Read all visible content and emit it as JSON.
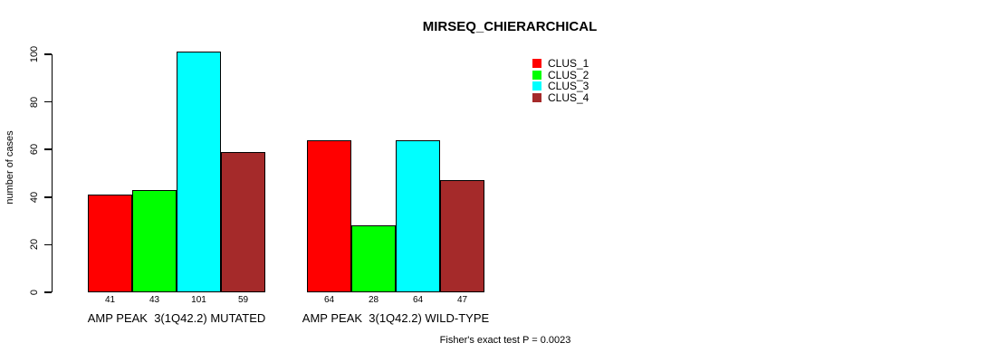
{
  "title": "MIRSEQ_CHIERARCHICAL",
  "ylabel": "number of cases",
  "footer": "Fisher's exact test P = 0.0023",
  "legend": {
    "items": [
      {
        "label": "CLUS_1",
        "color": "#FF0000"
      },
      {
        "label": "CLUS_2",
        "color": "#00FF00"
      },
      {
        "label": "CLUS_3",
        "color": "#00FFFF"
      },
      {
        "label": "CLUS_4",
        "color": "#A52A2A"
      }
    ]
  },
  "colors": {
    "axis": "#000000",
    "background": "#FFFFFF"
  },
  "chart_data": {
    "type": "bar",
    "title": "MIRSEQ_CHIERARCHICAL",
    "xlabel": "",
    "ylabel": "number of cases",
    "ylim": [
      0,
      100
    ],
    "yticks": [
      0,
      20,
      40,
      60,
      80,
      100
    ],
    "grid": false,
    "legend_position": "top-right",
    "series": [
      "CLUS_1",
      "CLUS_2",
      "CLUS_3",
      "CLUS_4"
    ],
    "series_colors": [
      "#FF0000",
      "#00FF00",
      "#00FFFF",
      "#A52A2A"
    ],
    "groups": [
      {
        "label": "AMP PEAK  3(1Q42.2) MUTATED",
        "values": [
          41,
          43,
          101,
          59
        ]
      },
      {
        "label": "AMP PEAK  3(1Q42.2) WILD-TYPE",
        "values": [
          64,
          28,
          64,
          47
        ]
      }
    ],
    "bar_value_labels_shown": true,
    "annotation": "Fisher's exact test P = 0.0023"
  }
}
